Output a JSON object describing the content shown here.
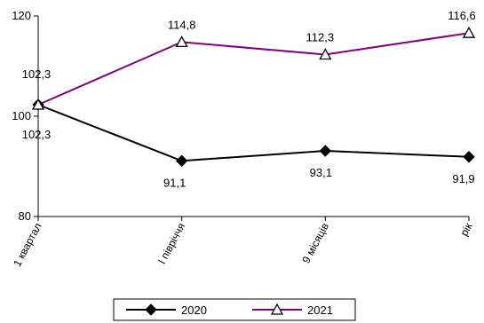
{
  "chart_data": {
    "type": "line",
    "categories": [
      "1 квартал",
      "І півріччя",
      "9 місяців",
      "рік"
    ],
    "ylim": [
      80,
      120
    ],
    "yticks": [
      "80",
      "100",
      "120"
    ],
    "grid": false,
    "legend": "bottom",
    "series": [
      {
        "name": "2020",
        "values": [
          102.3,
          91.1,
          93.1,
          91.9
        ],
        "labels": [
          "102,3",
          "91,1",
          "93,1",
          "91,9"
        ],
        "color": "#000000",
        "marker": "diamond"
      },
      {
        "name": "2021",
        "values": [
          102.3,
          114.8,
          112.3,
          116.6
        ],
        "labels": [
          "102,3",
          "114,8",
          "112,3",
          "116,6"
        ],
        "color": "#800080",
        "marker": "triangle"
      }
    ]
  }
}
